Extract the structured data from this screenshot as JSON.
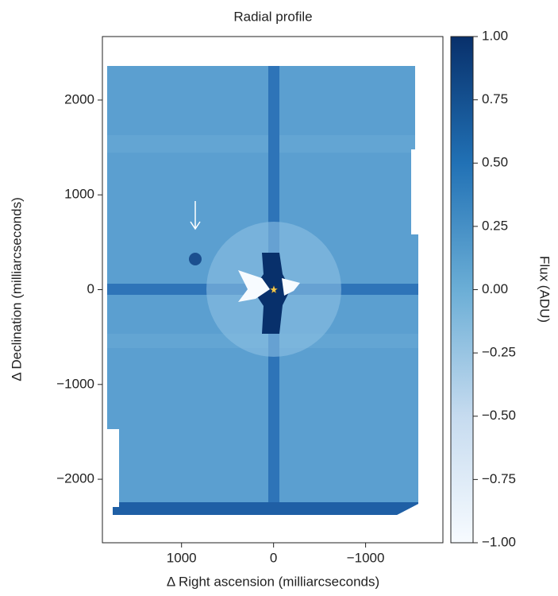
{
  "chart_data": {
    "type": "image",
    "title": "Radial profile",
    "xlabel": "Δ Right ascension (milliarcseconds)",
    "ylabel": "Δ Declination (milliarcseconds)",
    "xlim": [
      1860,
      -1840
    ],
    "xticks": [
      1000,
      0,
      {
        "value": -1000,
        "label": "−1000"
      }
    ],
    "ylim": [
      -2670,
      2670
    ],
    "yticks": [
      {
        "value": -2000,
        "label": "−2000"
      },
      {
        "value": -1000,
        "label": "−1000"
      },
      0,
      1000,
      2000
    ],
    "colorbar": {
      "label": "Flux (ADU)",
      "lim": [
        -1,
        1
      ],
      "cmap": "Blues",
      "ticks": [
        {
          "value": -1,
          "label": "−1.00"
        },
        {
          "value": -0.75,
          "label": "−0.75"
        },
        {
          "value": -0.5,
          "label": "−0.50"
        },
        {
          "value": -0.25,
          "label": "−0.25"
        },
        {
          "value": 0,
          "label": "0.00"
        },
        {
          "value": 0.25,
          "label": "0.25"
        },
        {
          "value": 0.5,
          "label": "0.50"
        },
        {
          "value": 0.75,
          "label": "0.75"
        },
        {
          "value": 1,
          "label": "1.00"
        }
      ]
    }
  }
}
